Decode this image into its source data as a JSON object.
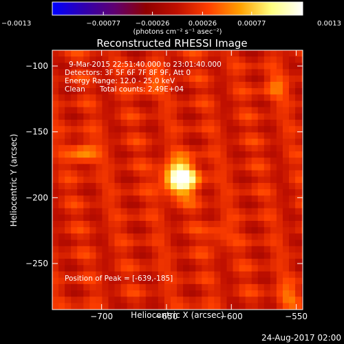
{
  "chart_data": {
    "type": "heatmap",
    "title": "Reconstructed RHESSI Image",
    "xlabel": "Heliocentric X (arcsec)",
    "ylabel": "Heliocentric Y (arcsec)",
    "xlim": [
      -738,
      -545
    ],
    "ylim": [
      -285,
      -88
    ],
    "x_ticks": [
      -700,
      -650,
      -600,
      -550
    ],
    "y_ticks": [
      -100,
      -150,
      -200,
      -250
    ],
    "colorbar": {
      "range": [
        -0.0013,
        0.0013
      ],
      "tick_values": [
        -0.0013,
        -0.00077,
        -0.00026,
        0.00026,
        0.00077,
        0.0013
      ],
      "tick_labels": [
        "-0.0013",
        "-0.00077",
        "-0.00026",
        "0.00026",
        "0.00077",
        "0.0013"
      ],
      "units_label": "(photons cm⁻² s⁻¹ asec⁻²)",
      "colors": [
        "#0000ff",
        "#3000b0",
        "#600070",
        "#900000",
        "#c01000",
        "#ff4000",
        "#ffa000",
        "#ffff80",
        "#ffffff"
      ]
    },
    "peak": {
      "x": -639,
      "y": -185,
      "value": 0.0013
    },
    "sources": [
      {
        "x": -639,
        "y": -185,
        "amplitude": 0.0013
      },
      {
        "x": -714,
        "y": -166,
        "amplitude": 0.00045
      },
      {
        "x": -662,
        "y": -112,
        "amplitude": 0.0003
      },
      {
        "x": -566,
        "y": -116,
        "amplitude": 0.0003
      },
      {
        "x": -556,
        "y": -274,
        "amplitude": 0.0003
      },
      {
        "x": -610,
        "y": -228,
        "amplitude": 0.00025
      }
    ],
    "annotations": [
      "9-Mar-2015 22:51:40.000 to 23:01:40.000",
      "Detectors: 3F 5F 6F 7F 8F 9F, Att 0",
      "Energy Range: 12.0 - 25.0 keV",
      "Clean",
      "Total counts: 2.49E+04",
      "Position of Peak = [-639,-185]"
    ]
  },
  "footer": {
    "date": "24-Aug-2017 02:00"
  }
}
